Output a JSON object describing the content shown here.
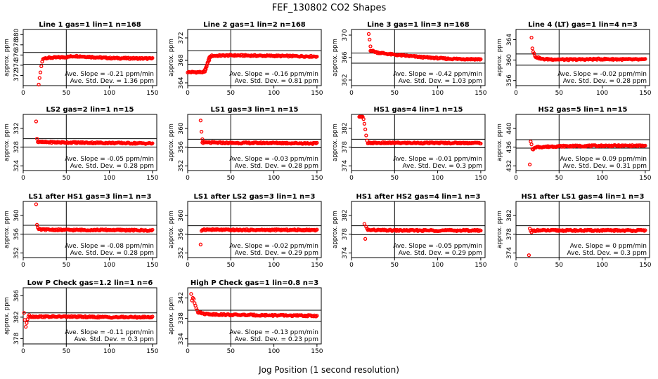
{
  "title": "FEF_130802  CO2 Shapes",
  "xlabel": "Jog Position (1 second resolution)",
  "colors": {
    "points": "#ff0000",
    "axes": "#000000",
    "background": "#ffffff"
  },
  "chart_data": [
    {
      "type": "scatter",
      "title": "Line 1 gas=1 lin=1 n=168",
      "ylabel": "approx. ppm",
      "xlim": [
        0,
        155
      ],
      "ylim": [
        370,
        381
      ],
      "xticks": [
        0,
        50,
        100,
        150
      ],
      "yticks": [
        372,
        374,
        376,
        378,
        380
      ],
      "vline": 50,
      "hlines": [
        376.5,
        374.2
      ],
      "annotations": [
        "Ave. Slope = -0.21 ppm/min",
        "Ave. Std. Dev. = 1.36 ppm"
      ],
      "series": [
        {
          "x": [
            18,
            19,
            20,
            21,
            22,
            23
          ],
          "y": [
            370.2,
            371.5,
            372.6,
            373.8,
            374.7,
            375.2
          ]
        }
      ],
      "trend": {
        "x": [
          24,
          50,
          60,
          80,
          100,
          150
        ],
        "y": [
          375.4,
          375.6,
          375.8,
          375.6,
          375.4,
          375.3
        ]
      }
    },
    {
      "type": "scatter",
      "title": "Line 2 gas=1 lin=2 n=168",
      "ylabel": "approx. ppm",
      "xlim": [
        0,
        155
      ],
      "ylim": [
        363.5,
        373.5
      ],
      "xticks": [
        0,
        50,
        100,
        150
      ],
      "yticks": [
        364,
        368,
        372
      ],
      "vline": 50,
      "hlines": [
        369.7,
        367.3
      ],
      "annotations": [
        "Ave. Slope = -0.16 ppm/min",
        "Ave. Std. Dev. = 0.81 ppm"
      ],
      "series": [
        {
          "x": [
            20,
            21,
            22,
            23,
            24,
            25,
            26
          ],
          "y": [
            366.0,
            366.4,
            367.0,
            367.6,
            368.1,
            368.5,
            368.7
          ]
        }
      ],
      "trend": {
        "x": [
          0,
          19,
          27,
          50,
          100,
          150
        ],
        "y": [
          365.9,
          365.9,
          368.8,
          368.9,
          368.8,
          368.7
        ]
      }
    },
    {
      "type": "scatter",
      "title": "Line 3 gas=1 lin=3 n=168",
      "ylabel": "approx. ppm",
      "xlim": [
        0,
        155
      ],
      "ylim": [
        361,
        371
      ],
      "xticks": [
        0,
        50,
        100,
        150
      ],
      "yticks": [
        362,
        366,
        370
      ],
      "vline": 50,
      "hlines": [
        366.8,
        365.0
      ],
      "annotations": [
        "Ave. Slope = -0.42 ppm/min",
        "Ave. Std. Dev. = 1.03 ppm"
      ],
      "series": [
        {
          "x": [
            20,
            21,
            22
          ],
          "y": [
            370.2,
            369.2,
            368.0
          ]
        }
      ],
      "trend": {
        "x": [
          22,
          30,
          50,
          80,
          110,
          150
        ],
        "y": [
          367.3,
          366.9,
          366.5,
          366.1,
          365.8,
          365.7
        ]
      }
    },
    {
      "type": "scatter",
      "title": "Line 4 (LT) gas=1 lin=4 n=3",
      "ylabel": "approx. ppm",
      "xlim": [
        0,
        155
      ],
      "ylim": [
        355,
        366
      ],
      "xticks": [
        0,
        50,
        100,
        150
      ],
      "yticks": [
        356,
        360,
        364
      ],
      "vline": 50,
      "hlines": [
        361.2,
        359.0
      ],
      "annotations": [
        "Ave. Slope = -0.02 ppm/min",
        "Ave. Std. Dev. = 0.28 ppm"
      ],
      "series": [
        {
          "x": [
            18,
            19,
            20,
            21
          ],
          "y": [
            364.4,
            362.3,
            361.6,
            361.3
          ]
        }
      ],
      "trend": {
        "x": [
          22,
          30,
          60,
          100,
          150
        ],
        "y": [
          360.7,
          360.2,
          360.1,
          360.2,
          360.1
        ]
      }
    },
    {
      "type": "scatter",
      "title": "LS2 gas=2 lin=1 n=15",
      "ylabel": "approx. ppm",
      "xlim": [
        0,
        155
      ],
      "ylim": [
        323,
        335
      ],
      "xticks": [
        0,
        50,
        100,
        150
      ],
      "yticks": [
        324,
        328,
        332
      ],
      "vline": 50,
      "hlines": [
        329.8,
        328.0
      ],
      "annotations": [
        "Ave. Slope = -0.05 ppm/min",
        "Ave. Std. Dev. = 0.28 ppm"
      ],
      "series": [
        {
          "x": [
            15,
            16
          ],
          "y": [
            333.5,
            329.8
          ]
        }
      ],
      "trend": {
        "x": [
          17,
          50,
          100,
          150
        ],
        "y": [
          329.1,
          329.0,
          328.9,
          328.8
        ]
      }
    },
    {
      "type": "scatter",
      "title": "LS1 gas=3 lin=1 n=15",
      "ylabel": "approx. ppm",
      "xlim": [
        0,
        155
      ],
      "ylim": [
        351,
        363
      ],
      "xticks": [
        0,
        50,
        100,
        150
      ],
      "yticks": [
        352,
        356,
        360
      ],
      "vline": 50,
      "hlines": [
        357.7,
        355.9
      ],
      "annotations": [
        "Ave. Slope = -0.03 ppm/min",
        "Ave. Std. Dev. = 0.28 ppm"
      ],
      "series": [
        {
          "x": [
            15,
            16,
            17
          ],
          "y": [
            361.7,
            359.3,
            357.7
          ]
        }
      ],
      "trend": {
        "x": [
          17,
          50,
          100,
          150
        ],
        "y": [
          357.0,
          356.9,
          356.9,
          356.8
        ]
      }
    },
    {
      "type": "scatter",
      "title": "HS1 gas=4 lin=1 n=15",
      "ylabel": "approx. ppm",
      "xlim": [
        0,
        155
      ],
      "ylim": [
        373,
        385
      ],
      "xticks": [
        0,
        50,
        100,
        150
      ],
      "yticks": [
        374,
        378,
        382
      ],
      "vline": 50,
      "hlines": [
        379.7,
        377.9
      ],
      "annotations": [
        "Ave. Slope = -0.01 ppm/min",
        "Ave. Std. Dev. = 0.3 ppm"
      ],
      "series": [
        {
          "x": [
            9,
            10,
            11,
            12,
            13,
            14,
            15,
            16,
            17,
            18,
            19
          ],
          "y": [
            384.5,
            384.5,
            384.5,
            384.5,
            384.5,
            384.0,
            383.0,
            381.8,
            380.5,
            379.4,
            378.8
          ]
        }
      ],
      "trend": {
        "x": [
          20,
          50,
          100,
          150
        ],
        "y": [
          378.9,
          378.9,
          378.9,
          378.9
        ]
      }
    },
    {
      "type": "scatter",
      "title": "HS2 gas=5 lin=1 n=15",
      "ylabel": "approx. ppm",
      "xlim": [
        0,
        155
      ],
      "ylim": [
        431,
        443
      ],
      "xticks": [
        0,
        50,
        100,
        150
      ],
      "yticks": [
        432,
        436,
        440
      ],
      "vline": 50,
      "hlines": [
        437.6,
        435.8
      ],
      "annotations": [
        "Ave. Slope = 0.09 ppm/min",
        "Ave. Std. Dev. = 0.31 ppm"
      ],
      "series": [
        {
          "x": [
            16,
            17,
            18,
            19,
            20,
            21
          ],
          "y": [
            432.3,
            437.2,
            436.6,
            435.6,
            435.5,
            435.8
          ]
        }
      ],
      "trend": {
        "x": [
          22,
          50,
          100,
          150
        ],
        "y": [
          436.0,
          436.2,
          436.3,
          436.3
        ]
      }
    },
    {
      "type": "scatter",
      "title": "LS1 after HS1 gas=3 lin=1 n=3",
      "ylabel": "approx. ppm",
      "xlim": [
        0,
        155
      ],
      "ylim": [
        351,
        363
      ],
      "xticks": [
        0,
        50,
        100,
        150
      ],
      "yticks": [
        352,
        356,
        360
      ],
      "vline": 50,
      "hlines": [
        357.9,
        356.0
      ],
      "annotations": [
        "Ave. Slope = -0.08 ppm/min",
        "Ave. Std. Dev. = 0.28 ppm"
      ],
      "series": [
        {
          "x": [
            15,
            16,
            17
          ],
          "y": [
            362.4,
            358.0,
            357.4
          ]
        }
      ],
      "trend": {
        "x": [
          18,
          50,
          100,
          150
        ],
        "y": [
          357.0,
          356.9,
          356.9,
          356.8
        ]
      }
    },
    {
      "type": "scatter",
      "title": "LS1 after LS2 gas=3 lin=1 n=3",
      "ylabel": "approx. ppm",
      "xlim": [
        0,
        155
      ],
      "ylim": [
        351,
        363
      ],
      "xticks": [
        0,
        50,
        100,
        150
      ],
      "yticks": [
        352,
        356,
        360
      ],
      "vline": 50,
      "hlines": [
        357.8,
        355.9
      ],
      "annotations": [
        "Ave. Slope = -0.02 ppm/min",
        "Ave. Std. Dev. = 0.29 ppm"
      ],
      "series": [
        {
          "x": [
            15,
            16
          ],
          "y": [
            353.8,
            356.7
          ]
        }
      ],
      "trend": {
        "x": [
          17,
          50,
          100,
          150
        ],
        "y": [
          357.0,
          356.9,
          356.9,
          356.9
        ]
      }
    },
    {
      "type": "scatter",
      "title": "HS1 after HS2 gas=4 lin=1 n=3",
      "ylabel": "approx. ppm",
      "xlim": [
        0,
        155
      ],
      "ylim": [
        373,
        385
      ],
      "xticks": [
        0,
        50,
        100,
        150
      ],
      "yticks": [
        374,
        378,
        382
      ],
      "vline": 50,
      "hlines": [
        379.8,
        377.9
      ],
      "annotations": [
        "Ave. Slope = -0.05 ppm/min",
        "Ave. Std. Dev. = 0.29 ppm"
      ],
      "series": [
        {
          "x": [
            15,
            16,
            17,
            18
          ],
          "y": [
            380.2,
            377.0,
            379.6,
            379.2
          ]
        }
      ],
      "trend": {
        "x": [
          19,
          50,
          100,
          150
        ],
        "y": [
          378.9,
          378.8,
          378.8,
          378.8
        ]
      }
    },
    {
      "type": "scatter",
      "title": "HS1 after LS1 gas=4 lin=1 n=3",
      "ylabel": "approx. ppm",
      "xlim": [
        0,
        155
      ],
      "ylim": [
        373,
        385
      ],
      "xticks": [
        0,
        50,
        100,
        150
      ],
      "yticks": [
        374,
        378,
        382
      ],
      "vline": 50,
      "hlines": [
        379.8,
        377.9
      ],
      "annotations": [
        "Ave. Slope = 0 ppm/min",
        "Ave. Std. Dev. = 0.3 ppm"
      ],
      "series": [
        {
          "x": [
            15,
            16,
            17,
            18
          ],
          "y": [
            373.5,
            379.2,
            378.7,
            378.4
          ]
        }
      ],
      "trend": {
        "x": [
          19,
          50,
          100,
          150
        ],
        "y": [
          378.8,
          378.8,
          378.8,
          378.8
        ]
      }
    },
    {
      "type": "scatter",
      "title": "Low P Check gas=1.2 lin=1 n=6",
      "ylabel": "approx. ppm",
      "xlim": [
        0,
        155
      ],
      "ylim": [
        377,
        387.5
      ],
      "xticks": [
        0,
        50,
        100,
        150
      ],
      "yticks": [
        378,
        382,
        386
      ],
      "vline": 50,
      "hlines": [
        382.8,
        381.2
      ],
      "annotations": [
        "Ave. Slope = -0.11 ppm/min",
        "Ave. Std. Dev. = 0.3 ppm"
      ],
      "series": [
        {
          "x": [
            1,
            2,
            3,
            4,
            5,
            6,
            7
          ],
          "y": [
            382.8,
            381.5,
            380.2,
            380.9,
            381.6,
            382.1,
            382.4
          ]
        }
      ],
      "trend": {
        "x": [
          8,
          50,
          100,
          150
        ],
        "y": [
          382.1,
          382.1,
          382.0,
          382.0
        ]
      }
    },
    {
      "type": "scatter",
      "title": "High P Check gas=1 lin=0.8 n=3",
      "ylabel": "approx. ppm",
      "xlim": [
        0,
        155
      ],
      "ylim": [
        333,
        344
      ],
      "xticks": [
        0,
        50,
        100,
        150
      ],
      "yticks": [
        334,
        338,
        342
      ],
      "vline": 50,
      "hlines": [
        339.6,
        337.4
      ],
      "annotations": [
        "Ave. Slope = -0.13 ppm/min",
        "Ave. Std. Dev. = 0.23 ppm"
      ],
      "series": [
        {
          "x": [
            4,
            5,
            6,
            7,
            8,
            9,
            10,
            11
          ],
          "y": [
            342.8,
            341.5,
            342.0,
            341.8,
            341.0,
            340.5,
            340.0,
            339.6
          ]
        }
      ],
      "trend": {
        "x": [
          12,
          20,
          30,
          50,
          100,
          150
        ],
        "y": [
          339.2,
          338.9,
          338.8,
          338.7,
          338.6,
          338.5
        ]
      }
    }
  ]
}
